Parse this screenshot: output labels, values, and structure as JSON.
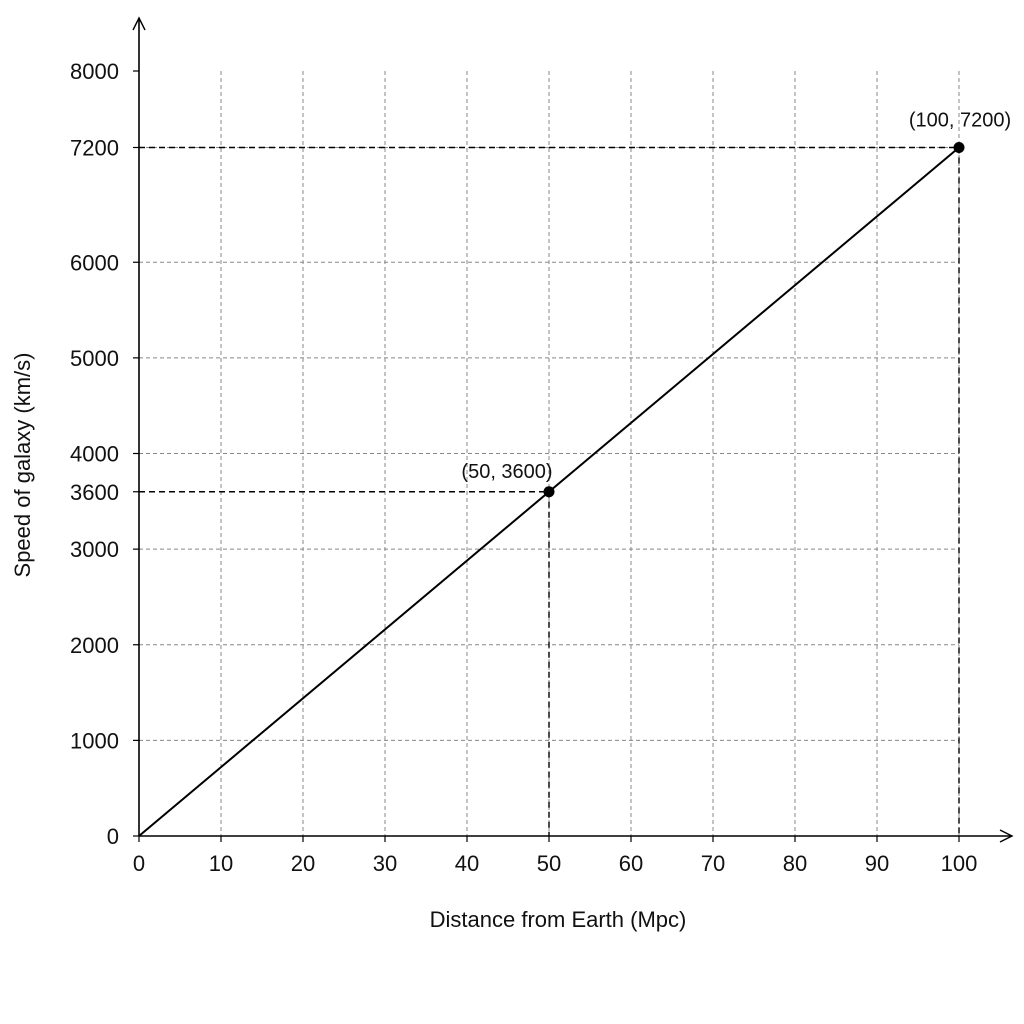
{
  "chart_data": {
    "type": "line",
    "xlabel": "Distance from Earth (Mpc)",
    "ylabel": "Speed of galaxy (km/s)",
    "xlim": [
      0,
      100
    ],
    "ylim": [
      0,
      8000
    ],
    "x_ticks": [
      0,
      10,
      20,
      30,
      40,
      50,
      60,
      70,
      80,
      90,
      100
    ],
    "y_ticks": [
      0,
      1000,
      2000,
      3000,
      3600,
      4000,
      5000,
      6000,
      7200,
      8000
    ],
    "x_grid": [
      10,
      20,
      30,
      40,
      50,
      60,
      70,
      80,
      90,
      100
    ],
    "y_grid": [
      1000,
      2000,
      3000,
      4000,
      5000,
      6000,
      7200
    ],
    "grid": true,
    "series": [
      {
        "x": [
          0,
          100
        ],
        "y": [
          0,
          7200
        ]
      }
    ],
    "marked_points": [
      {
        "x": 50,
        "y": 3600,
        "label": "(50, 3600)"
      },
      {
        "x": 100,
        "y": 7200,
        "label": "(100, 7200)"
      }
    ],
    "colors": {
      "line": "#000000",
      "grid": "#888888",
      "axis": "#000000"
    }
  }
}
